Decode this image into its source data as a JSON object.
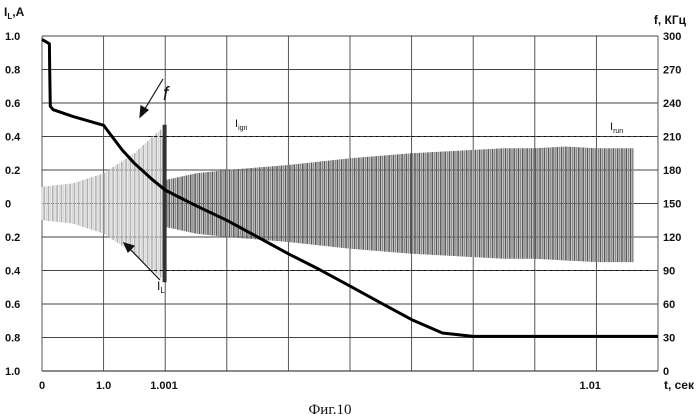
{
  "chart_data": {
    "type": "line",
    "caption": "Фиг.10",
    "left_axis": {
      "label": "I",
      "label_sub": "L",
      "label_suffix": ",A",
      "ticks": [
        "1.0",
        "0.8",
        "0.6",
        "0.4",
        "0.2",
        "0",
        "0.2",
        "0.4",
        "0.6",
        "0.8",
        "1.0"
      ],
      "ylim": [
        -1.0,
        1.0
      ]
    },
    "right_axis": {
      "label": "f, КГц",
      "ticks": [
        "300",
        "270",
        "240",
        "210",
        "180",
        "150",
        "120",
        "90",
        "60",
        "30",
        "0"
      ],
      "ylim": [
        0,
        300
      ]
    },
    "x_axis": {
      "label": "t, сек",
      "ticks": [
        "0",
        "1.0",
        "1.001",
        "1.01"
      ]
    },
    "grid": true,
    "series": [
      {
        "name": "f",
        "axis": "right",
        "color": "#000000",
        "x": [
          0.0,
          0.12,
          0.125,
          0.135,
          0.18,
          0.5,
          1.0,
          1.3,
          1.5,
          1.8,
          2.0,
          2.5,
          3.0,
          3.5,
          4.0,
          4.5,
          5.0,
          5.5,
          6.0,
          6.5,
          7.0,
          7.5,
          8.0,
          8.5,
          9.0,
          9.5,
          10.0
        ],
        "values": [
          297,
          293,
          270,
          237,
          234,
          228,
          220,
          198,
          186,
          171,
          162,
          148,
          135,
          120,
          105,
          91,
          76,
          61,
          46,
          34,
          31,
          31,
          31,
          31,
          31,
          31,
          31
        ]
      },
      {
        "name": "I",
        "name_sub": "L",
        "axis": "left",
        "color": "#bdbdbd",
        "kind": "envelope",
        "x": [
          0.0,
          0.5,
          1.0,
          1.5,
          1.95,
          2.0,
          2.5,
          3.0,
          4.0,
          5.0,
          6.0,
          7.0,
          7.5,
          8.0,
          8.5,
          9.0,
          9.6
        ],
        "upper": [
          0.1,
          0.12,
          0.18,
          0.3,
          0.45,
          0.14,
          0.18,
          0.2,
          0.23,
          0.27,
          0.3,
          0.32,
          0.33,
          0.33,
          0.34,
          0.33,
          0.33
        ],
        "lower": [
          -0.1,
          -0.12,
          -0.18,
          -0.3,
          -0.45,
          -0.14,
          -0.18,
          -0.2,
          -0.23,
          -0.27,
          -0.3,
          -0.32,
          -0.33,
          -0.33,
          -0.34,
          -0.35,
          -0.35
        ]
      }
    ],
    "annotations": {
      "f_label": "f",
      "il_label": "I",
      "il_label_sub": "L",
      "ign_label": "I",
      "ign_sub": "ign",
      "run_label": "I",
      "run_sub": "run",
      "ign_level": 0.4,
      "run_level": 0.4
    }
  }
}
